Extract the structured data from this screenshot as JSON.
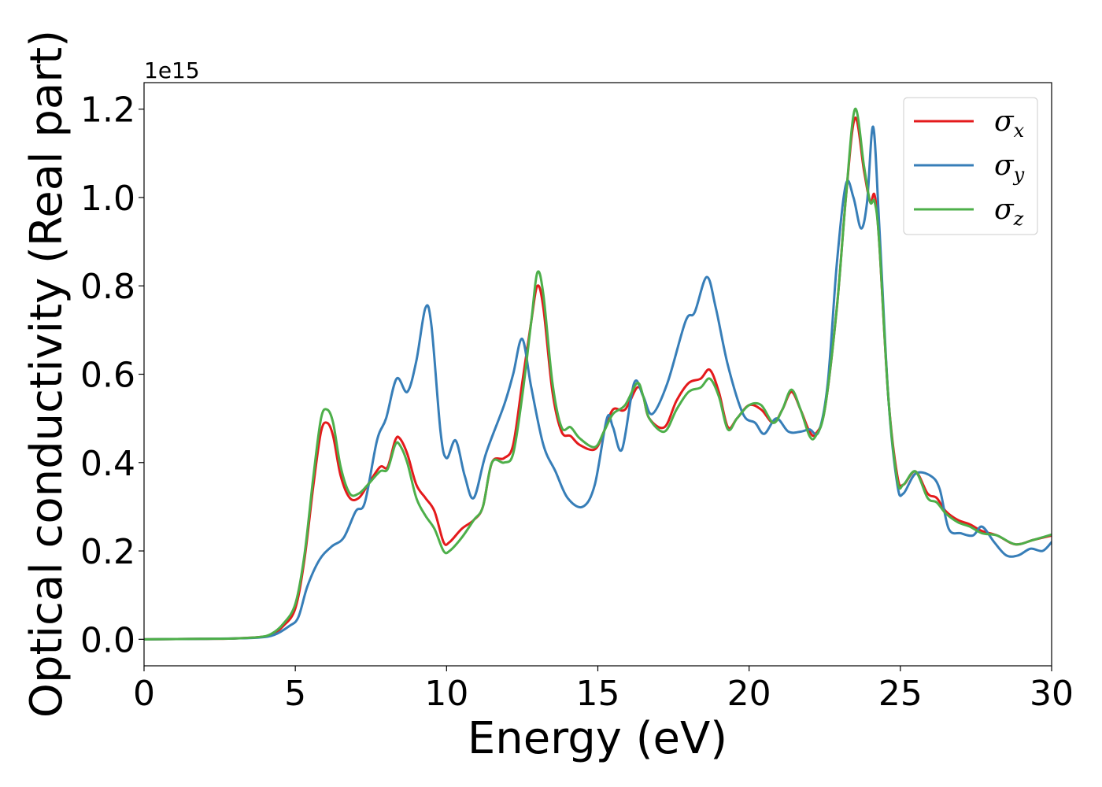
{
  "chart_data": {
    "type": "line",
    "xlabel": "Energy (eV)",
    "ylabel": "Optical conductivity (Real part)",
    "y_offset_label": "1e15",
    "xlim": [
      0,
      30
    ],
    "ylim": [
      -0.06,
      1.26
    ],
    "x_ticks": [
      0,
      5,
      10,
      15,
      20,
      25,
      30
    ],
    "x_tick_labels": [
      "0",
      "5",
      "10",
      "15",
      "20",
      "25",
      "30"
    ],
    "y_ticks": [
      0.0,
      0.2,
      0.4,
      0.6,
      0.8,
      1.0,
      1.2
    ],
    "y_tick_labels": [
      "0.0",
      "0.2",
      "0.4",
      "0.6",
      "0.8",
      "1.0",
      "1.2"
    ],
    "grid": false,
    "legend_position": "top-right",
    "series": [
      {
        "name": "σx",
        "symbol": "σ",
        "subscript": "x",
        "color": "#e41a1c",
        "points": [
          [
            0,
            0
          ],
          [
            2,
            0.001
          ],
          [
            3,
            0.002
          ],
          [
            3.8,
            0.005
          ],
          [
            4.2,
            0.01
          ],
          [
            4.6,
            0.03
          ],
          [
            5.0,
            0.07
          ],
          [
            5.3,
            0.18
          ],
          [
            5.6,
            0.35
          ],
          [
            5.85,
            0.47
          ],
          [
            6.05,
            0.49
          ],
          [
            6.25,
            0.46
          ],
          [
            6.5,
            0.37
          ],
          [
            6.8,
            0.32
          ],
          [
            7.1,
            0.32
          ],
          [
            7.4,
            0.35
          ],
          [
            7.8,
            0.39
          ],
          [
            8.05,
            0.39
          ],
          [
            8.3,
            0.45
          ],
          [
            8.45,
            0.455
          ],
          [
            8.7,
            0.42
          ],
          [
            9.0,
            0.35
          ],
          [
            9.3,
            0.32
          ],
          [
            9.6,
            0.29
          ],
          [
            9.9,
            0.22
          ],
          [
            10.1,
            0.22
          ],
          [
            10.5,
            0.25
          ],
          [
            10.9,
            0.27
          ],
          [
            11.2,
            0.3
          ],
          [
            11.5,
            0.4
          ],
          [
            11.9,
            0.41
          ],
          [
            12.2,
            0.44
          ],
          [
            12.5,
            0.58
          ],
          [
            12.8,
            0.72
          ],
          [
            13.0,
            0.8
          ],
          [
            13.2,
            0.75
          ],
          [
            13.5,
            0.56
          ],
          [
            13.8,
            0.47
          ],
          [
            14.1,
            0.46
          ],
          [
            14.4,
            0.44
          ],
          [
            14.9,
            0.43
          ],
          [
            15.2,
            0.47
          ],
          [
            15.5,
            0.52
          ],
          [
            15.9,
            0.52
          ],
          [
            16.3,
            0.57
          ],
          [
            16.5,
            0.55
          ],
          [
            16.7,
            0.5
          ],
          [
            17.2,
            0.48
          ],
          [
            17.6,
            0.54
          ],
          [
            18.0,
            0.58
          ],
          [
            18.4,
            0.59
          ],
          [
            18.7,
            0.61
          ],
          [
            19.0,
            0.56
          ],
          [
            19.3,
            0.48
          ],
          [
            19.6,
            0.5
          ],
          [
            20.0,
            0.53
          ],
          [
            20.4,
            0.52
          ],
          [
            20.8,
            0.49
          ],
          [
            21.1,
            0.52
          ],
          [
            21.4,
            0.56
          ],
          [
            21.7,
            0.52
          ],
          [
            22.0,
            0.47
          ],
          [
            22.2,
            0.465
          ],
          [
            22.5,
            0.52
          ],
          [
            22.9,
            0.75
          ],
          [
            23.2,
            1.0
          ],
          [
            23.5,
            1.18
          ],
          [
            23.8,
            1.06
          ],
          [
            24.0,
            0.99
          ],
          [
            24.15,
            1.005
          ],
          [
            24.3,
            0.9
          ],
          [
            24.6,
            0.55
          ],
          [
            24.9,
            0.37
          ],
          [
            25.1,
            0.35
          ],
          [
            25.5,
            0.38
          ],
          [
            25.9,
            0.33
          ],
          [
            26.2,
            0.32
          ],
          [
            26.5,
            0.29
          ],
          [
            26.9,
            0.27
          ],
          [
            27.3,
            0.26
          ],
          [
            27.7,
            0.245
          ],
          [
            28.2,
            0.235
          ],
          [
            28.8,
            0.215
          ],
          [
            29.4,
            0.225
          ],
          [
            30,
            0.235
          ]
        ]
      },
      {
        "name": "σy",
        "symbol": "σ",
        "subscript": "y",
        "color": "#377eb8",
        "points": [
          [
            0,
            0
          ],
          [
            2,
            0.001
          ],
          [
            3,
            0.002
          ],
          [
            3.8,
            0.004
          ],
          [
            4.3,
            0.01
          ],
          [
            4.8,
            0.03
          ],
          [
            5.1,
            0.05
          ],
          [
            5.4,
            0.12
          ],
          [
            5.8,
            0.18
          ],
          [
            6.2,
            0.21
          ],
          [
            6.6,
            0.23
          ],
          [
            7.0,
            0.29
          ],
          [
            7.3,
            0.31
          ],
          [
            7.7,
            0.45
          ],
          [
            8.0,
            0.5
          ],
          [
            8.35,
            0.59
          ],
          [
            8.7,
            0.56
          ],
          [
            9.0,
            0.63
          ],
          [
            9.3,
            0.75
          ],
          [
            9.5,
            0.71
          ],
          [
            9.8,
            0.47
          ],
          [
            10.0,
            0.41
          ],
          [
            10.3,
            0.45
          ],
          [
            10.6,
            0.37
          ],
          [
            10.9,
            0.32
          ],
          [
            11.3,
            0.42
          ],
          [
            11.9,
            0.53
          ],
          [
            12.2,
            0.6
          ],
          [
            12.5,
            0.68
          ],
          [
            12.8,
            0.57
          ],
          [
            13.2,
            0.44
          ],
          [
            13.6,
            0.38
          ],
          [
            14.0,
            0.32
          ],
          [
            14.5,
            0.3
          ],
          [
            14.9,
            0.35
          ],
          [
            15.3,
            0.5
          ],
          [
            15.5,
            0.48
          ],
          [
            15.8,
            0.43
          ],
          [
            16.2,
            0.58
          ],
          [
            16.5,
            0.55
          ],
          [
            16.8,
            0.51
          ],
          [
            17.3,
            0.58
          ],
          [
            17.9,
            0.72
          ],
          [
            18.2,
            0.74
          ],
          [
            18.6,
            0.82
          ],
          [
            18.9,
            0.75
          ],
          [
            19.3,
            0.62
          ],
          [
            19.8,
            0.51
          ],
          [
            20.2,
            0.49
          ],
          [
            20.5,
            0.465
          ],
          [
            20.9,
            0.5
          ],
          [
            21.3,
            0.47
          ],
          [
            21.7,
            0.47
          ],
          [
            22.0,
            0.475
          ],
          [
            22.3,
            0.47
          ],
          [
            22.6,
            0.58
          ],
          [
            22.9,
            0.85
          ],
          [
            23.2,
            1.03
          ],
          [
            23.45,
            1.0
          ],
          [
            23.7,
            0.93
          ],
          [
            23.9,
            0.99
          ],
          [
            24.1,
            1.16
          ],
          [
            24.3,
            0.94
          ],
          [
            24.6,
            0.55
          ],
          [
            24.9,
            0.35
          ],
          [
            25.1,
            0.33
          ],
          [
            25.5,
            0.375
          ],
          [
            26.0,
            0.37
          ],
          [
            26.3,
            0.34
          ],
          [
            26.6,
            0.25
          ],
          [
            27.0,
            0.24
          ],
          [
            27.4,
            0.235
          ],
          [
            27.7,
            0.255
          ],
          [
            28.1,
            0.22
          ],
          [
            28.5,
            0.19
          ],
          [
            28.9,
            0.19
          ],
          [
            29.3,
            0.205
          ],
          [
            29.7,
            0.2
          ],
          [
            30,
            0.22
          ]
        ]
      },
      {
        "name": "σz",
        "symbol": "σ",
        "subscript": "z",
        "color": "#4daf4a",
        "points": [
          [
            0,
            0
          ],
          [
            2,
            0.001
          ],
          [
            3,
            0.002
          ],
          [
            3.8,
            0.005
          ],
          [
            4.2,
            0.012
          ],
          [
            4.6,
            0.035
          ],
          [
            5.0,
            0.08
          ],
          [
            5.3,
            0.19
          ],
          [
            5.6,
            0.37
          ],
          [
            5.85,
            0.5
          ],
          [
            6.05,
            0.52
          ],
          [
            6.25,
            0.49
          ],
          [
            6.5,
            0.39
          ],
          [
            6.8,
            0.33
          ],
          [
            7.1,
            0.33
          ],
          [
            7.4,
            0.35
          ],
          [
            7.8,
            0.38
          ],
          [
            8.05,
            0.385
          ],
          [
            8.3,
            0.44
          ],
          [
            8.45,
            0.44
          ],
          [
            8.7,
            0.4
          ],
          [
            9.0,
            0.32
          ],
          [
            9.3,
            0.28
          ],
          [
            9.6,
            0.25
          ],
          [
            9.9,
            0.2
          ],
          [
            10.1,
            0.2
          ],
          [
            10.5,
            0.23
          ],
          [
            10.9,
            0.27
          ],
          [
            11.2,
            0.3
          ],
          [
            11.5,
            0.4
          ],
          [
            11.9,
            0.4
          ],
          [
            12.2,
            0.42
          ],
          [
            12.5,
            0.55
          ],
          [
            12.8,
            0.72
          ],
          [
            13.0,
            0.83
          ],
          [
            13.2,
            0.78
          ],
          [
            13.5,
            0.58
          ],
          [
            13.8,
            0.48
          ],
          [
            14.1,
            0.48
          ],
          [
            14.4,
            0.455
          ],
          [
            14.9,
            0.435
          ],
          [
            15.2,
            0.47
          ],
          [
            15.5,
            0.51
          ],
          [
            15.9,
            0.53
          ],
          [
            16.3,
            0.58
          ],
          [
            16.5,
            0.55
          ],
          [
            16.7,
            0.5
          ],
          [
            17.2,
            0.47
          ],
          [
            17.6,
            0.52
          ],
          [
            18.0,
            0.56
          ],
          [
            18.4,
            0.57
          ],
          [
            18.7,
            0.59
          ],
          [
            19.0,
            0.55
          ],
          [
            19.3,
            0.475
          ],
          [
            19.6,
            0.5
          ],
          [
            20.0,
            0.53
          ],
          [
            20.4,
            0.53
          ],
          [
            20.8,
            0.49
          ],
          [
            21.1,
            0.52
          ],
          [
            21.4,
            0.565
          ],
          [
            21.7,
            0.52
          ],
          [
            22.0,
            0.46
          ],
          [
            22.2,
            0.46
          ],
          [
            22.5,
            0.52
          ],
          [
            22.9,
            0.75
          ],
          [
            23.2,
            1.0
          ],
          [
            23.5,
            1.2
          ],
          [
            23.8,
            1.07
          ],
          [
            24.0,
            0.99
          ],
          [
            24.15,
            0.99
          ],
          [
            24.3,
            0.9
          ],
          [
            24.6,
            0.55
          ],
          [
            24.9,
            0.36
          ],
          [
            25.1,
            0.35
          ],
          [
            25.5,
            0.38
          ],
          [
            25.9,
            0.32
          ],
          [
            26.2,
            0.31
          ],
          [
            26.5,
            0.285
          ],
          [
            26.9,
            0.265
          ],
          [
            27.3,
            0.255
          ],
          [
            27.7,
            0.24
          ],
          [
            28.2,
            0.235
          ],
          [
            28.8,
            0.215
          ],
          [
            29.4,
            0.225
          ],
          [
            30,
            0.237
          ]
        ]
      }
    ]
  }
}
